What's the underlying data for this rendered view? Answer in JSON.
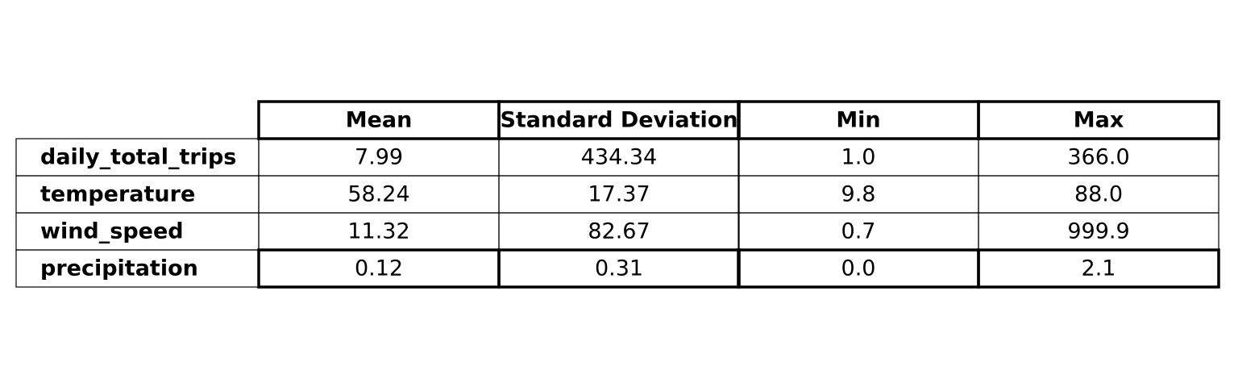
{
  "chart_data": {
    "type": "table",
    "columns": [
      "Mean",
      "Standard Deviation",
      "Min",
      "Max"
    ],
    "rows": [
      {
        "label": "daily_total_trips",
        "values": [
          "7.99",
          "434.34",
          "1.0",
          "366.0"
        ]
      },
      {
        "label": "temperature",
        "values": [
          "58.24",
          "17.37",
          "9.8",
          "88.0"
        ]
      },
      {
        "label": "wind_speed",
        "values": [
          "11.32",
          "82.67",
          "0.7",
          "999.9"
        ]
      },
      {
        "label": "precipitation",
        "values": [
          "0.12",
          "0.31",
          "0.0",
          "2.1"
        ]
      }
    ],
    "colors": {
      "line": "#000000",
      "text": "#000000",
      "background": "#ffffff"
    }
  }
}
